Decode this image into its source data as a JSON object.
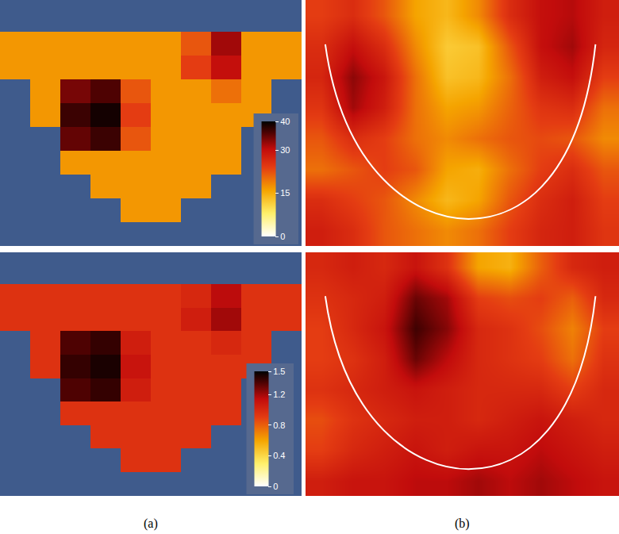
{
  "chart_data": [
    {
      "type": "heatmap",
      "tick_labels": false,
      "colorbar": {
        "range": [
          0,
          40
        ],
        "ticks": [
          0,
          15,
          30,
          40
        ]
      },
      "panels": [
        {
          "cells": [
            [
              17,
              17,
              17,
              17,
              17,
              17,
              22,
              32,
              17,
              17
            ],
            [
              17,
              17,
              17,
              17,
              17,
              17,
              24,
              30,
              17,
              17
            ],
            [
              null,
              17,
              34,
              36,
              22,
              17,
              17,
              20,
              17,
              null
            ],
            [
              null,
              17,
              37,
              39,
              24,
              17,
              17,
              17,
              17,
              null
            ],
            [
              null,
              null,
              35,
              37,
              22,
              17,
              17,
              17,
              null,
              null
            ],
            [
              null,
              null,
              17,
              17,
              17,
              17,
              17,
              17,
              null,
              null
            ],
            [
              null,
              null,
              null,
              17,
              17,
              17,
              17,
              null,
              null,
              null
            ],
            [
              null,
              null,
              null,
              null,
              17,
              17,
              null,
              null,
              null,
              null
            ]
          ]
        },
        {
          "cells": [
            [
              24,
              26,
              22,
              16,
              14,
              18,
              26,
              30,
              31,
              28
            ],
            [
              26,
              30,
              26,
              18,
              12,
              13,
              22,
              30,
              32,
              27
            ],
            [
              27,
              33,
              29,
              20,
              13,
              14,
              20,
              28,
              30,
              24
            ],
            [
              25,
              32,
              28,
              20,
              16,
              17,
              21,
              25,
              26,
              20
            ],
            [
              22,
              26,
              24,
              20,
              18,
              20,
              22,
              23,
              22,
              18
            ],
            [
              20,
              22,
              24,
              22,
              16,
              15,
              20,
              24,
              26,
              22
            ],
            [
              26,
              24,
              22,
              18,
              14,
              16,
              22,
              26,
              28,
              24
            ],
            [
              28,
              26,
              22,
              20,
              18,
              20,
              24,
              27,
              28,
              25
            ]
          ]
        }
      ]
    },
    {
      "type": "heatmap",
      "tick_labels": false,
      "colorbar": {
        "range": [
          0,
          1.5
        ],
        "ticks": [
          0,
          0.4,
          0.8,
          1.2,
          1.5
        ]
      },
      "xlabels": [
        "(a)",
        "(b)"
      ],
      "panels": [
        {
          "cells": [
            [
              0.95,
              0.95,
              0.95,
              0.95,
              0.95,
              0.95,
              1.0,
              1.15,
              0.95,
              0.95
            ],
            [
              0.95,
              0.95,
              0.95,
              0.95,
              0.95,
              0.95,
              1.05,
              1.2,
              0.95,
              0.95
            ],
            [
              null,
              0.95,
              1.35,
              1.4,
              1.05,
              0.95,
              0.95,
              1.0,
              0.95,
              null
            ],
            [
              null,
              0.95,
              1.4,
              1.45,
              1.1,
              0.95,
              0.95,
              0.95,
              0.95,
              null
            ],
            [
              null,
              null,
              1.35,
              1.4,
              1.05,
              0.95,
              0.95,
              0.95,
              null,
              null
            ],
            [
              null,
              null,
              0.95,
              0.95,
              0.95,
              0.95,
              0.95,
              0.95,
              null,
              null
            ],
            [
              null,
              null,
              null,
              0.95,
              0.95,
              0.95,
              0.95,
              null,
              null,
              null
            ],
            [
              null,
              null,
              null,
              null,
              0.95,
              0.95,
              null,
              null,
              null,
              null
            ]
          ]
        },
        {
          "cells": [
            [
              1.0,
              1.05,
              1.0,
              1.1,
              0.95,
              0.6,
              0.55,
              0.8,
              1.0,
              1.05
            ],
            [
              0.95,
              1.0,
              1.05,
              1.3,
              1.2,
              0.9,
              0.85,
              0.9,
              0.8,
              1.0
            ],
            [
              0.9,
              1.0,
              1.1,
              1.38,
              1.25,
              1.0,
              0.95,
              0.85,
              0.7,
              0.9
            ],
            [
              0.9,
              0.95,
              1.05,
              1.3,
              1.15,
              1.0,
              0.95,
              0.9,
              0.75,
              0.95
            ],
            [
              0.95,
              1.0,
              1.05,
              1.1,
              1.05,
              1.0,
              1.0,
              1.0,
              0.9,
              1.0
            ],
            [
              0.85,
              0.95,
              1.0,
              1.05,
              1.05,
              1.0,
              1.05,
              1.1,
              1.05,
              1.0
            ],
            [
              0.9,
              1.0,
              1.05,
              1.1,
              1.05,
              1.1,
              1.1,
              1.15,
              1.1,
              1.05
            ],
            [
              1.05,
              1.1,
              1.1,
              1.15,
              1.15,
              1.2,
              1.15,
              1.2,
              1.15,
              1.1
            ]
          ]
        }
      ]
    }
  ]
}
